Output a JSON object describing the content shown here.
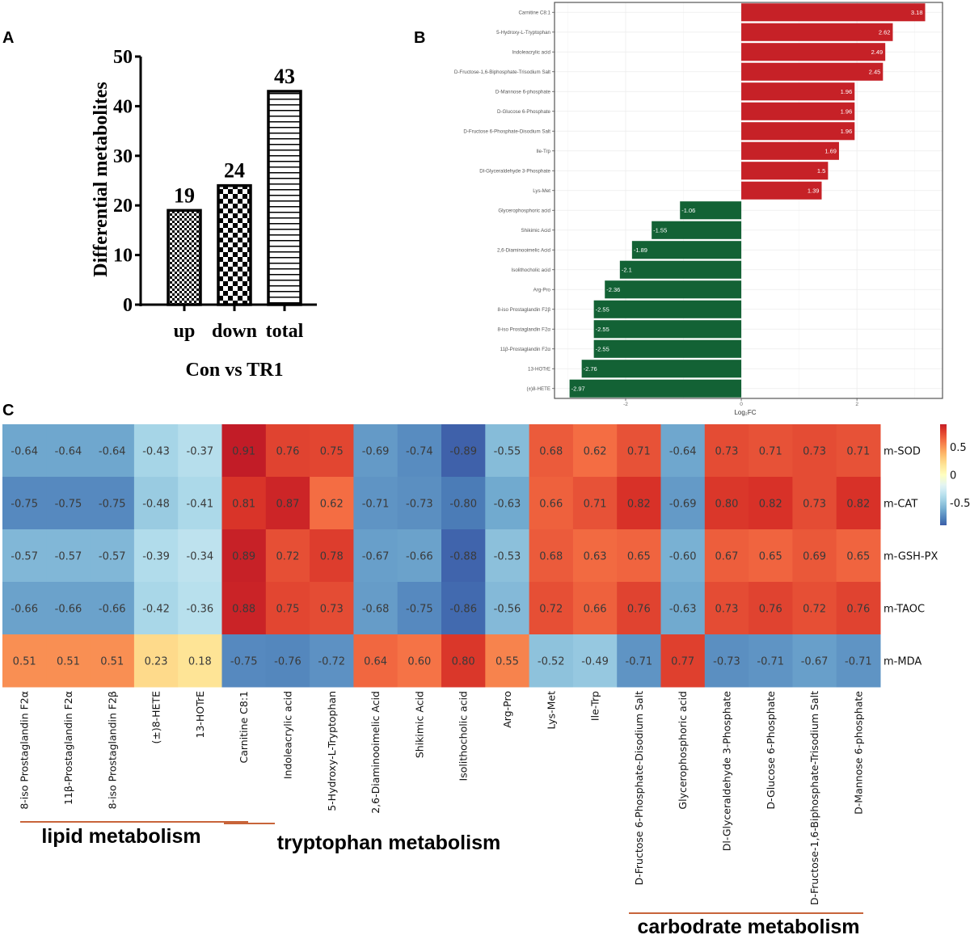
{
  "panel_labels": {
    "a": "A",
    "b": "B",
    "c": "C"
  },
  "chart_data": [
    {
      "panel": "A",
      "type": "bar",
      "categories": [
        "up",
        "down",
        "total"
      ],
      "values": [
        19,
        24,
        43
      ],
      "data_labels": [
        "19",
        "24",
        "43"
      ],
      "patterns": [
        "fine-checker",
        "coarse-checker",
        "horizontal-stripes"
      ],
      "xlabel": "Con vs TR1",
      "ylabel": "Differential metabolites",
      "ylim": [
        0,
        50
      ],
      "yticks": [
        "0",
        "10",
        "20",
        "30",
        "40",
        "50"
      ],
      "grid": false
    },
    {
      "panel": "B",
      "type": "bar",
      "orientation": "horizontal",
      "categories": [
        "Carnitine C8:1",
        "5-Hydroxy-L-Tryptophan",
        "Indoleacrylic acid",
        "D-Fructose-1,6-Biphosphate-Trisodium Salt",
        "D-Mannose 6-phosphate",
        "D-Glucose 6-Phosphate",
        "D-Fructose 6-Phosphate-Disodium Salt",
        "Ile-Trp",
        "Dl-Glyceraldehyde 3-Phosphate",
        "Lys-Met",
        "Glycerophosphoric acid",
        "Shikimic Acid",
        "2,6-Diaminooimelic Acid",
        "Isolithocholic acid",
        "Arg-Pro",
        "8-iso Prostaglandin F2β",
        "8-iso Prostaglandin F2α",
        "11β-Prostaglandin F2α",
        "13-HOTrE",
        "(±)8-HETE"
      ],
      "values": [
        3.18,
        2.62,
        2.49,
        2.45,
        1.96,
        1.96,
        1.96,
        1.69,
        1.5,
        1.39,
        -1.06,
        -1.55,
        -1.89,
        -2.1,
        -2.36,
        -2.55,
        -2.55,
        -2.55,
        -2.76,
        -2.97
      ],
      "data_labels": [
        "3.18",
        "2.62",
        "2.49",
        "2.45",
        "1.96",
        "1.96",
        "1.96",
        "1.69",
        "1.5",
        "1.39",
        "-1.06",
        "-1.55",
        "-1.89",
        "-2.1",
        "-2.36",
        "-2.55",
        "-2.55",
        "-2.55",
        "-2.76",
        "-2.97"
      ],
      "xlabel": "Log₂FC",
      "xlim": [
        -3.23,
        3.48
      ],
      "xticks": [
        -2,
        0,
        2
      ],
      "xtick_labels": [
        "-2",
        "0",
        "2"
      ],
      "grid": true,
      "colors": {
        "positive": "#c62127",
        "negative": "#136235"
      }
    },
    {
      "panel": "C",
      "type": "heatmap",
      "columns": [
        "8-iso Prostaglandin F2α",
        "11β-Prostaglandin F2α",
        "8-iso Prostaglandin F2β",
        "(±)8-HETE",
        "13-HOTrE",
        "Carnitine C8:1",
        "Indoleacrylic acid",
        "5-Hydroxy-L-Tryptophan",
        "2,6-Diaminooimelic Acid",
        "Shikimic Acid",
        "Isolithocholic acid",
        "Arg-Pro",
        "Lys-Met",
        "Ile-Trp",
        "D-Fructose 6-Phosphate-Disodium Salt",
        "Glycerophosphoric acid",
        "Dl-Glyceraldehyde 3-Phosphate",
        "D-Glucose 6-Phosphate",
        "D-Fructose-1,6-Biphosphate-Trisodium Salt",
        "D-Mannose 6-phosphate"
      ],
      "rows": [
        "m-SOD",
        "m-CAT",
        "m-GSH-PX",
        "m-TAOC",
        "m-MDA"
      ],
      "values": [
        [
          "-0.64",
          "-0.64",
          "-0.64",
          "-0.43",
          "-0.37",
          "0.91",
          "0.76",
          "0.75",
          "-0.69",
          "-0.74",
          "-0.89",
          "-0.55",
          "0.68",
          "0.62",
          "0.71",
          "-0.64",
          "0.73",
          "0.71",
          "0.73",
          "0.71"
        ],
        [
          "-0.75",
          "-0.75",
          "-0.75",
          "-0.48",
          "-0.41",
          "0.81",
          "0.87",
          "0.62",
          "-0.71",
          "-0.73",
          "-0.80",
          "-0.63",
          "0.66",
          "0.71",
          "0.82",
          "-0.69",
          "0.80",
          "0.82",
          "0.73",
          "0.82"
        ],
        [
          "-0.57",
          "-0.57",
          "-0.57",
          "-0.39",
          "-0.34",
          "0.89",
          "0.72",
          "0.78",
          "-0.67",
          "-0.66",
          "-0.88",
          "-0.53",
          "0.68",
          "0.63",
          "0.65",
          "-0.60",
          "0.67",
          "0.65",
          "0.69",
          "0.65"
        ],
        [
          "-0.66",
          "-0.66",
          "-0.66",
          "-0.42",
          "-0.36",
          "0.88",
          "0.75",
          "0.73",
          "-0.68",
          "-0.75",
          "-0.86",
          "-0.56",
          "0.72",
          "0.66",
          "0.76",
          "-0.63",
          "0.73",
          "0.76",
          "0.72",
          "0.76"
        ],
        [
          "0.51",
          "0.51",
          "0.51",
          "0.23",
          "0.18",
          "-0.75",
          "-0.76",
          "-0.72",
          "0.64",
          "0.60",
          "0.80",
          "0.55",
          "-0.52",
          "-0.49",
          "-0.71",
          "0.77",
          "-0.73",
          "-0.71",
          "-0.67",
          "-0.71"
        ]
      ],
      "colormap": "RdYlBu_r",
      "colorbar_ticks": [
        "0.5",
        "0",
        "-0.5"
      ],
      "colorbar_tick_values": [
        0.5,
        0,
        -0.5
      ],
      "groups": [
        {
          "label": "lipid metabolism"
        },
        {
          "label": "tryptophan metabolism"
        },
        {
          "label": "carbodrate metabolism"
        }
      ],
      "group_line_color": "#c8643a"
    }
  ]
}
